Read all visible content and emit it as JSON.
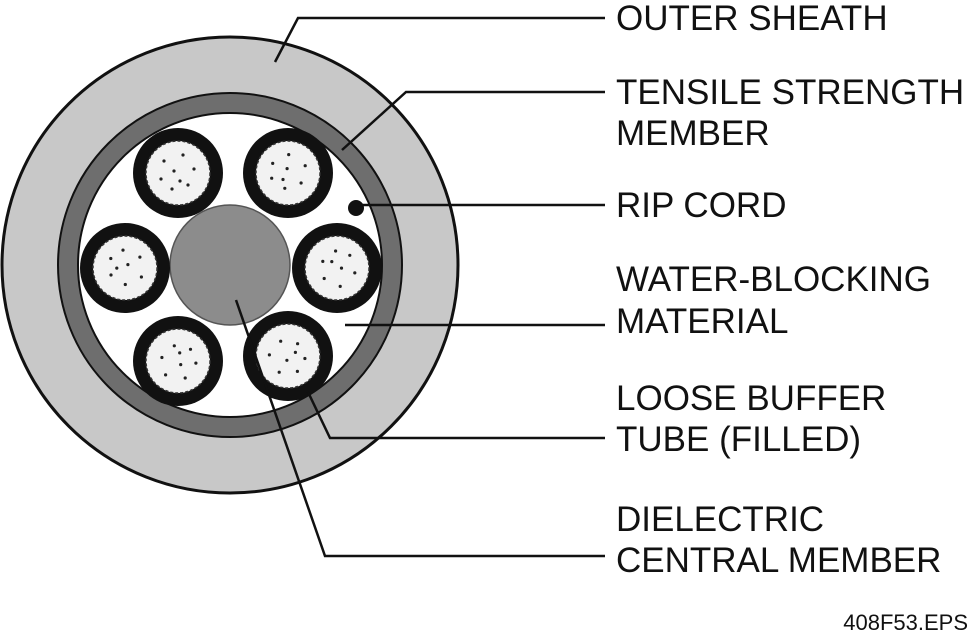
{
  "labels": {
    "outer_sheath": "OUTER SHEATH",
    "tensile_line1": "TENSILE STRENGTH",
    "tensile_line2": "MEMBER",
    "rip_cord": "RIP CORD",
    "water_line1": "WATER-BLOCKING",
    "water_line2": "MATERIAL",
    "loose_line1": "LOOSE BUFFER",
    "loose_line2": "TUBE (FILLED)",
    "dielectric_line1": "DIELECTRIC",
    "dielectric_line2": "CENTRAL MEMBER"
  },
  "figure_id": "408F53.EPS",
  "colors": {
    "outer_sheath": "#c8c8c8",
    "tensile_member": "#6e6e6e",
    "water_blocking": "#ffffff",
    "central_member": "#8c8c8c",
    "tube_wall": "#111111",
    "fiber_fill": "#f2f2f2",
    "line": "#111111"
  }
}
